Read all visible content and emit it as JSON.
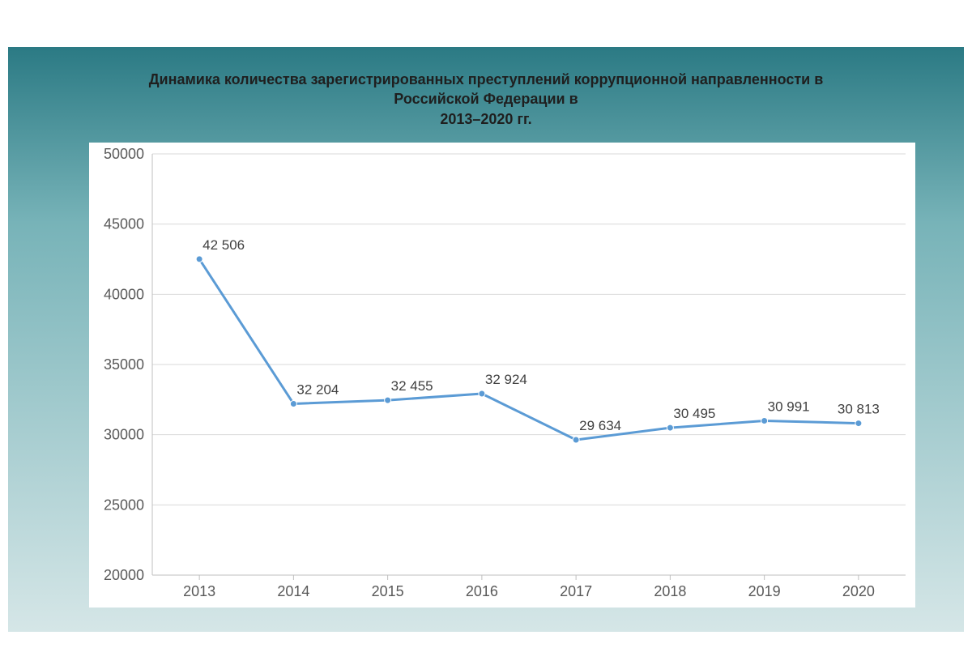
{
  "title": {
    "line1": "Динамика количества зарегистрированных преступлений коррупционной направленности в",
    "line2": "Российской Федерации в",
    "line3": "2013–2020 гг.",
    "color": "#1f1f1f",
    "fontsize": 18,
    "fontweight": "bold"
  },
  "gradient": {
    "top": "#2b7a84",
    "mid": "#77b3b8",
    "bottom": "#d5e6e7"
  },
  "chart": {
    "type": "line",
    "background_color": "#ffffff",
    "plot_left_pad": 78,
    "plot_right_pad": 12,
    "plot_top_pad": 14,
    "plot_bottom_pad": 40,
    "categories": [
      "2013",
      "2014",
      "2015",
      "2016",
      "2017",
      "2018",
      "2019",
      "2020"
    ],
    "values": [
      42506,
      32204,
      32455,
      32924,
      29634,
      30495,
      30991,
      30813
    ],
    "value_labels": [
      "42 506",
      "32 204",
      "32 455",
      "32 924",
      "29 634",
      "30 495",
      "30 991",
      "30 813"
    ],
    "ylim": [
      20000,
      50000
    ],
    "ytick_step": 5000,
    "ytick_labels": [
      "20000",
      "25000",
      "30000",
      "35000",
      "40000",
      "45000",
      "50000"
    ],
    "line_color": "#5b9bd5",
    "line_width": 3,
    "marker_color": "#5b9bd5",
    "marker_radius": 4,
    "grid_color": "#d9d9d9",
    "axis_color": "#bfbfbf",
    "tick_label_color": "#595959",
    "tick_fontsize": 18,
    "data_label_color": "#404040",
    "data_label_fontsize": 17
  }
}
